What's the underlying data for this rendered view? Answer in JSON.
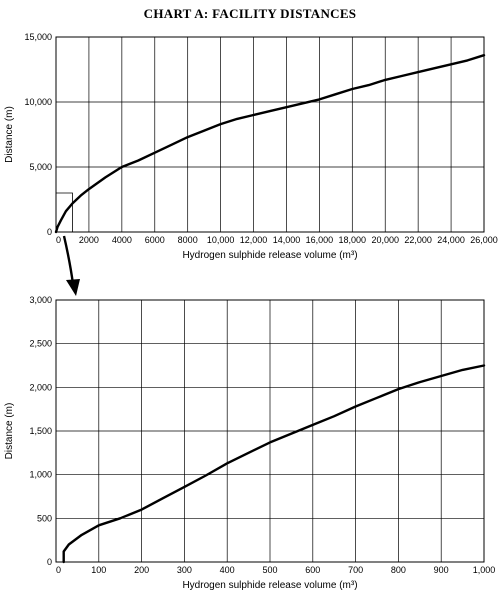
{
  "title": "CHART A: FACILITY DISTANCES",
  "chart_data": [
    {
      "type": "line",
      "xlabel": "Hydrogen sulphide release volume (m³)",
      "ylabel": "Distance (m)",
      "xlim": [
        0,
        26000
      ],
      "ylim": [
        0,
        15000
      ],
      "xticks": [
        0,
        2000,
        4000,
        6000,
        8000,
        10000,
        12000,
        14000,
        16000,
        18000,
        20000,
        22000,
        24000,
        26000
      ],
      "xtick_labels": [
        "0",
        "2000",
        "4000",
        "6000",
        "8000",
        "10,000",
        "12,000",
        "14,000",
        "16,000",
        "18,000",
        "20,000",
        "22,000",
        "24,000",
        "26,000"
      ],
      "yticks": [
        0,
        5000,
        10000,
        15000
      ],
      "ytick_labels": [
        "0",
        "5,000",
        "10,000",
        "15,000"
      ],
      "grid": true,
      "series": [
        {
          "x": [
            0,
            100,
            300,
            600,
            1000,
            1500,
            2000,
            3000,
            4000,
            5000,
            6000,
            7000,
            8000,
            9000,
            10000,
            11000,
            12000,
            13000,
            14000,
            15000,
            16000,
            17000,
            18000,
            19000,
            20000,
            21000,
            22000,
            23000,
            24000,
            25000,
            26000
          ],
          "y": [
            0,
            400,
            900,
            1600,
            2200,
            2800,
            3300,
            4200,
            5000,
            5500,
            6100,
            6700,
            7300,
            7800,
            8300,
            8700,
            9000,
            9300,
            9600,
            9900,
            10200,
            10600,
            11000,
            11300,
            11700,
            12000,
            12300,
            12600,
            12900,
            13200,
            13600
          ]
        }
      ]
    },
    {
      "type": "line",
      "xlabel": "Hydrogen sulphide release volume (m³)",
      "ylabel": "Distance (m)",
      "xlim": [
        0,
        1000
      ],
      "ylim": [
        0,
        3000
      ],
      "xticks": [
        0,
        100,
        200,
        300,
        400,
        500,
        600,
        700,
        800,
        900,
        1000
      ],
      "xtick_labels": [
        "0",
        "100",
        "200",
        "300",
        "400",
        "500",
        "600",
        "700",
        "800",
        "900",
        "1,000"
      ],
      "yticks": [
        0,
        500,
        1000,
        1500,
        2000,
        2500,
        3000
      ],
      "ytick_labels": [
        "0",
        "500",
        "1,000",
        "1,500",
        "2,000",
        "2,500",
        "3,000"
      ],
      "grid": true,
      "series": [
        {
          "x": [
            18,
            18,
            30,
            60,
            100,
            150,
            200,
            250,
            300,
            350,
            400,
            450,
            500,
            550,
            600,
            650,
            700,
            750,
            800,
            850,
            900,
            950,
            1000
          ],
          "y": [
            0,
            120,
            200,
            310,
            420,
            500,
            600,
            730,
            860,
            990,
            1130,
            1250,
            1370,
            1470,
            1570,
            1670,
            1780,
            1880,
            1980,
            2060,
            2130,
            2200,
            2250
          ]
        }
      ]
    }
  ]
}
